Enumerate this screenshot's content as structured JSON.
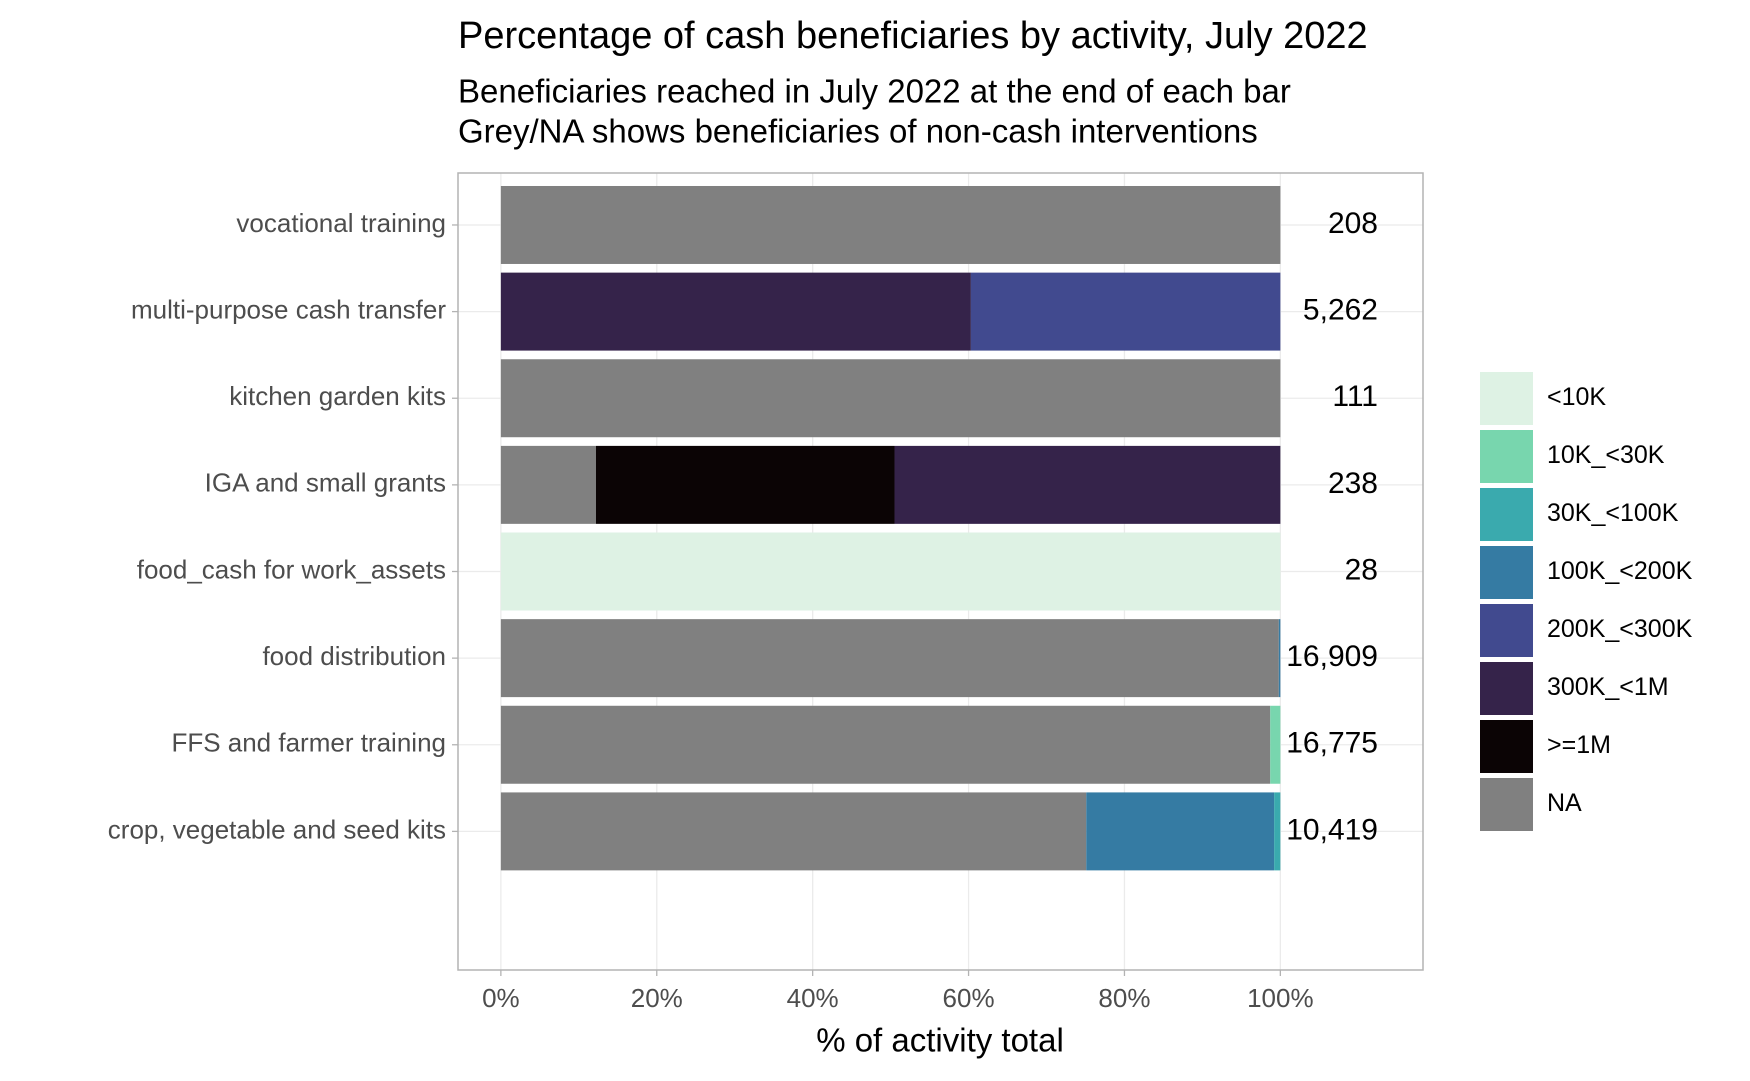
{
  "chart_data": {
    "type": "stacked-barh",
    "title": "Percentage of cash beneficiaries by activity, July 2022",
    "subtitle": [
      "Beneficiaries reached in July 2022 at the end of each bar",
      "Grey/NA shows beneficiaries of non-cash interventions"
    ],
    "x_label": "% of activity total",
    "categories": [
      "vocational training",
      "multi-purpose cash transfer",
      "kitchen garden kits",
      "IGA and small grants",
      "food_cash for work_assets",
      "food distribution",
      "FFS and farmer training",
      "crop, vegetable and seed kits"
    ],
    "series": [
      {
        "name": "<10K",
        "color": "#def2e4",
        "values": [
          0,
          0,
          0,
          0,
          100,
          0,
          0,
          0
        ]
      },
      {
        "name": "10K_<30K",
        "color": "#78d6ae",
        "values": [
          0,
          0,
          0,
          0,
          0,
          0,
          1.3,
          0
        ]
      },
      {
        "name": "30K_<100K",
        "color": "#3aaaae",
        "values": [
          0,
          0,
          0,
          0,
          0,
          0,
          0,
          0.8
        ]
      },
      {
        "name": "100K_<200K",
        "color": "#357ba3",
        "values": [
          0,
          0,
          0,
          0,
          0,
          0.2,
          0,
          24.1
        ]
      },
      {
        "name": "200K_<300K",
        "color": "#414a8f",
        "values": [
          0,
          39.7,
          0,
          0,
          0,
          0,
          0,
          0
        ]
      },
      {
        "name": "300K_<1M",
        "color": "#35234a",
        "values": [
          0,
          60.3,
          0,
          49.5,
          0,
          0,
          0,
          0
        ]
      },
      {
        "name": ">=1M",
        "color": "#0b0405",
        "values": [
          0,
          0,
          0,
          38.3,
          0,
          0,
          0,
          0
        ]
      },
      {
        "name": "NA",
        "color": "#808080",
        "values": [
          100,
          0,
          100,
          12.2,
          0,
          99.8,
          98.7,
          75.1
        ]
      }
    ],
    "end_labels": {
      "values": [
        208,
        5262,
        111,
        238,
        28,
        16909,
        16775,
        10419
      ],
      "value_labels": [
        "208",
        "5,262",
        "111",
        "238",
        "28",
        "16,909",
        "16,775",
        "10,419"
      ]
    },
    "xlim": [
      -5.5,
      118.3
    ],
    "xticks": [
      {
        "value": 0,
        "label": "0%"
      },
      {
        "value": 20,
        "label": "20%"
      },
      {
        "value": 40,
        "label": "40%"
      },
      {
        "value": 60,
        "label": "60%"
      },
      {
        "value": 80,
        "label": "80%"
      },
      {
        "value": 100,
        "label": "100%"
      }
    ],
    "grid": true
  }
}
